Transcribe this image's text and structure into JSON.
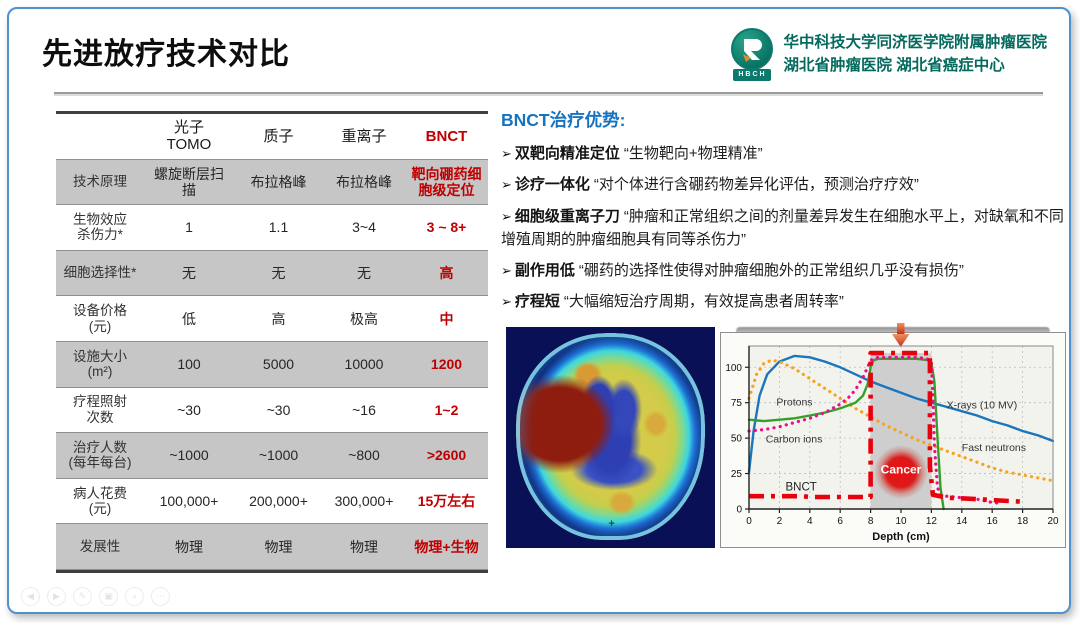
{
  "slide": {
    "title": "先进放疗技术对比"
  },
  "header": {
    "hospital_line1": "华中科技大学同济医学院附属肿瘤医院",
    "hospital_line2": "湖北省肿瘤医院  湖北省癌症中心",
    "logo_text": "HBCH"
  },
  "colors": {
    "highlight_red": "#c00000",
    "heading_blue": "#1873bf",
    "brand_teal": "#056a5e",
    "frame_blue": "#4e91d2",
    "shaded_row_gray": "#c6c6c6"
  },
  "comparison_table": {
    "columns": [
      "",
      "光子\nTOMO",
      "质子",
      "重离子",
      "BNCT"
    ],
    "rows": [
      {
        "label": "技术原理",
        "cells": [
          "螺旋断层扫描",
          "布拉格峰",
          "布拉格峰",
          "靶向硼药细胞级定位"
        ],
        "shaded": true
      },
      {
        "label": "生物效应\n杀伤力*",
        "cells": [
          "1",
          "1.1",
          "3~4",
          "3 ~ 8+"
        ],
        "shaded": false
      },
      {
        "label": "细胞选择性*",
        "cells": [
          "无",
          "无",
          "无",
          "高"
        ],
        "shaded": true
      },
      {
        "label": "设备价格\n(元)",
        "cells": [
          "低",
          "高",
          "极高",
          "中"
        ],
        "shaded": false
      },
      {
        "label": "设施大小\n(m²)",
        "cells": [
          "100",
          "5000",
          "10000",
          "1200"
        ],
        "shaded": true
      },
      {
        "label": "疗程照射\n次数",
        "cells": [
          "~30",
          "~30",
          "~16",
          "1~2"
        ],
        "shaded": false
      },
      {
        "label": "治疗人数\n(每年每台)",
        "cells": [
          "~1000",
          "~1000",
          "~800",
          ">2600"
        ],
        "shaded": true
      },
      {
        "label": "病人花费\n(元)",
        "cells": [
          "100,000+",
          "200,000+",
          "300,000+",
          "15万左右"
        ],
        "shaded": false
      },
      {
        "label": "发展性",
        "cells": [
          "物理",
          "物理",
          "物理",
          "物理+生物"
        ],
        "shaded": true
      }
    ]
  },
  "advantages": {
    "heading": "BNCT治疗优势:",
    "items": [
      {
        "lead": "双靶向精准定位",
        "quote": "“生物靶向+物理精准”"
      },
      {
        "lead": "诊疗一体化",
        "quote": "“对个体进行含硼药物差异化评估，预测治疗疗效”"
      },
      {
        "lead": "细胞级重离子刀",
        "quote": "“肿瘤和正常组织之间的剂量差异发生在细胞水平上，对缺氧和不同增殖周期的肿瘤细胞具有同等杀伤力”"
      },
      {
        "lead": "副作用低",
        "quote": "“硼药的选择性使得对肿瘤细胞外的正常组织几乎没有损伤”"
      },
      {
        "lead": "疗程短",
        "quote": "“大幅缩短治疗周期，有效提高患者周转率”"
      }
    ]
  },
  "chart_data": {
    "type": "line",
    "title": "",
    "xlabel": "Depth (cm)",
    "ylabel": "",
    "xlim": [
      0,
      20
    ],
    "ylim": [
      0,
      115
    ],
    "x_ticks": [
      0,
      2,
      4,
      6,
      8,
      10,
      12,
      14,
      16,
      18,
      20
    ],
    "y_ticks": [
      0,
      25,
      50,
      75,
      100
    ],
    "grid": true,
    "legend_position": "inline-labels",
    "tumor_region": {
      "x_start": 8,
      "x_end": 12,
      "top": 110,
      "label": "Cancer"
    },
    "series": [
      {
        "name": "X-rays (10 MV)",
        "color": "#1b75bc",
        "style": "solid",
        "points": [
          [
            0,
            26
          ],
          [
            0.3,
            55
          ],
          [
            0.7,
            80
          ],
          [
            1.2,
            95
          ],
          [
            2,
            104
          ],
          [
            3,
            108
          ],
          [
            4,
            107
          ],
          [
            5,
            104
          ],
          [
            6,
            100
          ],
          [
            7,
            95
          ],
          [
            8,
            90
          ],
          [
            9,
            86
          ],
          [
            10,
            82
          ],
          [
            11,
            78
          ],
          [
            12,
            75
          ],
          [
            13,
            72
          ],
          [
            14,
            69
          ],
          [
            15,
            66
          ],
          [
            16,
            62
          ],
          [
            17,
            59
          ],
          [
            18,
            55
          ],
          [
            19,
            52
          ],
          [
            20,
            48
          ]
        ]
      },
      {
        "name": "Fast neutrons",
        "color": "#f9a11b",
        "style": "dotted",
        "points": [
          [
            0,
            78
          ],
          [
            0.5,
            95
          ],
          [
            1,
            103
          ],
          [
            1.5,
            105
          ],
          [
            2,
            104
          ],
          [
            3,
            99
          ],
          [
            4,
            92
          ],
          [
            5,
            85
          ],
          [
            6,
            78
          ],
          [
            7,
            71
          ],
          [
            8,
            65
          ],
          [
            9,
            59
          ],
          [
            10,
            54
          ],
          [
            11,
            49
          ],
          [
            12,
            45
          ],
          [
            13,
            41
          ],
          [
            14,
            37
          ],
          [
            15,
            33
          ],
          [
            16,
            29
          ],
          [
            17,
            26
          ],
          [
            18,
            24
          ],
          [
            19,
            22
          ],
          [
            20,
            20
          ]
        ]
      },
      {
        "name": "Protons",
        "color": "#33a02c",
        "style": "solid",
        "points": [
          [
            0,
            63
          ],
          [
            1,
            62
          ],
          [
            2,
            63
          ],
          [
            3,
            64
          ],
          [
            4,
            66
          ],
          [
            5,
            68
          ],
          [
            6,
            71
          ],
          [
            7,
            75
          ],
          [
            7.5,
            80
          ],
          [
            7.8,
            88
          ],
          [
            8,
            100
          ],
          [
            8.2,
            105
          ],
          [
            8.5,
            106
          ],
          [
            9,
            106
          ],
          [
            10,
            106
          ],
          [
            11,
            106
          ],
          [
            11.8,
            105
          ],
          [
            12,
            103
          ],
          [
            12.2,
            90
          ],
          [
            12.4,
            50
          ],
          [
            12.6,
            15
          ],
          [
            12.8,
            0
          ]
        ]
      },
      {
        "name": "Carbon ions",
        "color": "#ec0c8c",
        "style": "dotted",
        "points": [
          [
            0,
            55
          ],
          [
            1,
            56
          ],
          [
            2,
            58
          ],
          [
            3,
            61
          ],
          [
            4,
            64
          ],
          [
            5,
            68
          ],
          [
            6,
            74
          ],
          [
            6.5,
            78
          ],
          [
            7,
            84
          ],
          [
            7.5,
            93
          ],
          [
            7.8,
            100
          ],
          [
            8,
            105
          ],
          [
            8.5,
            107
          ],
          [
            9,
            107
          ],
          [
            10,
            107
          ],
          [
            11,
            107
          ],
          [
            11.7,
            106
          ],
          [
            12,
            104
          ],
          [
            12.1,
            80
          ],
          [
            12.2,
            45
          ],
          [
            12.4,
            15
          ],
          [
            12.6,
            10
          ],
          [
            13,
            9
          ],
          [
            14,
            8
          ],
          [
            15,
            7
          ],
          [
            15.8,
            5
          ],
          [
            16.5,
            4
          ]
        ]
      },
      {
        "name": "BNCT",
        "color": "#e8000d",
        "style": "dash-dot",
        "points": [
          [
            0,
            9
          ],
          [
            3.5,
            9
          ],
          [
            4,
            8.5
          ],
          [
            8,
            8.5
          ],
          [
            8,
            110
          ],
          [
            11.9,
            110
          ],
          [
            11.9,
            30
          ],
          [
            12.1,
            10
          ],
          [
            13,
            8
          ],
          [
            15,
            7
          ],
          [
            16.5,
            6
          ],
          [
            18.2,
            5
          ]
        ]
      }
    ],
    "labels": [
      {
        "text": "Protons",
        "x": 1.8,
        "y": 73,
        "color": "#333",
        "size": 10.5
      },
      {
        "text": "Carbon ions",
        "x": 1.1,
        "y": 47,
        "color": "#333",
        "size": 10.5
      },
      {
        "text": "X-rays (10 MV)",
        "x": 13.0,
        "y": 71,
        "color": "#333",
        "size": 10.5
      },
      {
        "text": "Fast neutrons",
        "x": 14.0,
        "y": 41,
        "color": "#333",
        "size": 10.5
      },
      {
        "text": "BNCT",
        "x": 2.4,
        "y": 13,
        "color": "#222",
        "size": 11.5
      },
      {
        "text": "Cancer",
        "x": 10,
        "y": 25,
        "color": "#ffffff",
        "size": 12,
        "bold": true,
        "anchor": "middle"
      }
    ]
  },
  "footer_controls": [
    {
      "name": "previous-slide",
      "glyph": "◀"
    },
    {
      "name": "next-slide",
      "glyph": "▶"
    },
    {
      "name": "pen-tool",
      "glyph": "✎"
    },
    {
      "name": "all-slides",
      "glyph": "▣"
    },
    {
      "name": "zoom-slide",
      "glyph": "⌕"
    },
    {
      "name": "more-options",
      "glyph": "⋯"
    }
  ]
}
